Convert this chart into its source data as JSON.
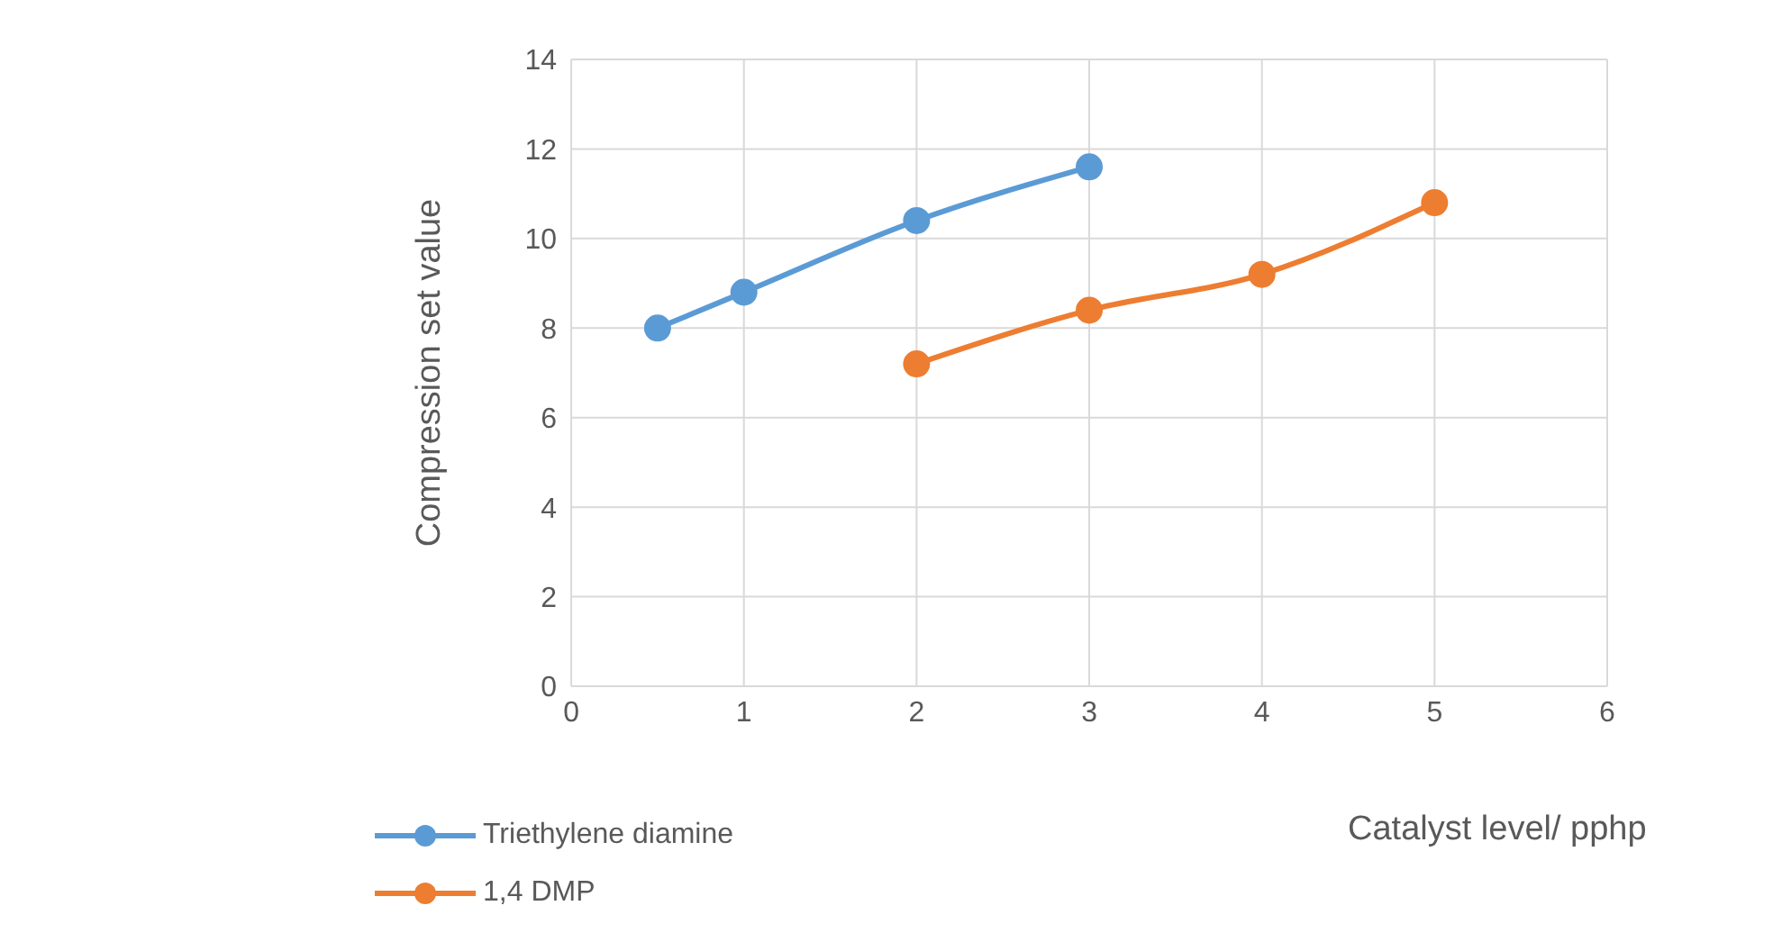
{
  "chart_data": {
    "type": "line",
    "xlabel": "Catalyst level/ pphp",
    "ylabel": "Compression set value",
    "series": [
      {
        "name": "Triethylene diamine",
        "color": "#5b9bd5",
        "x": [
          0.5,
          1,
          2,
          3
        ],
        "values": [
          8,
          8.8,
          10.4,
          11.6
        ]
      },
      {
        "name": "1,4 DMP",
        "color": "#ed7d31",
        "x": [
          2,
          3,
          4,
          5
        ],
        "values": [
          7.2,
          8.4,
          9.2,
          10.8
        ]
      }
    ],
    "xlim": [
      0,
      6
    ],
    "xticks": [
      0,
      1,
      2,
      3,
      4,
      5,
      6
    ],
    "ylim": [
      0,
      14
    ],
    "yticks": [
      0,
      2,
      4,
      6,
      8,
      10,
      12,
      14
    ],
    "grid": true,
    "legend": "bottom left",
    "marker": "circle",
    "line_style": "solid"
  }
}
